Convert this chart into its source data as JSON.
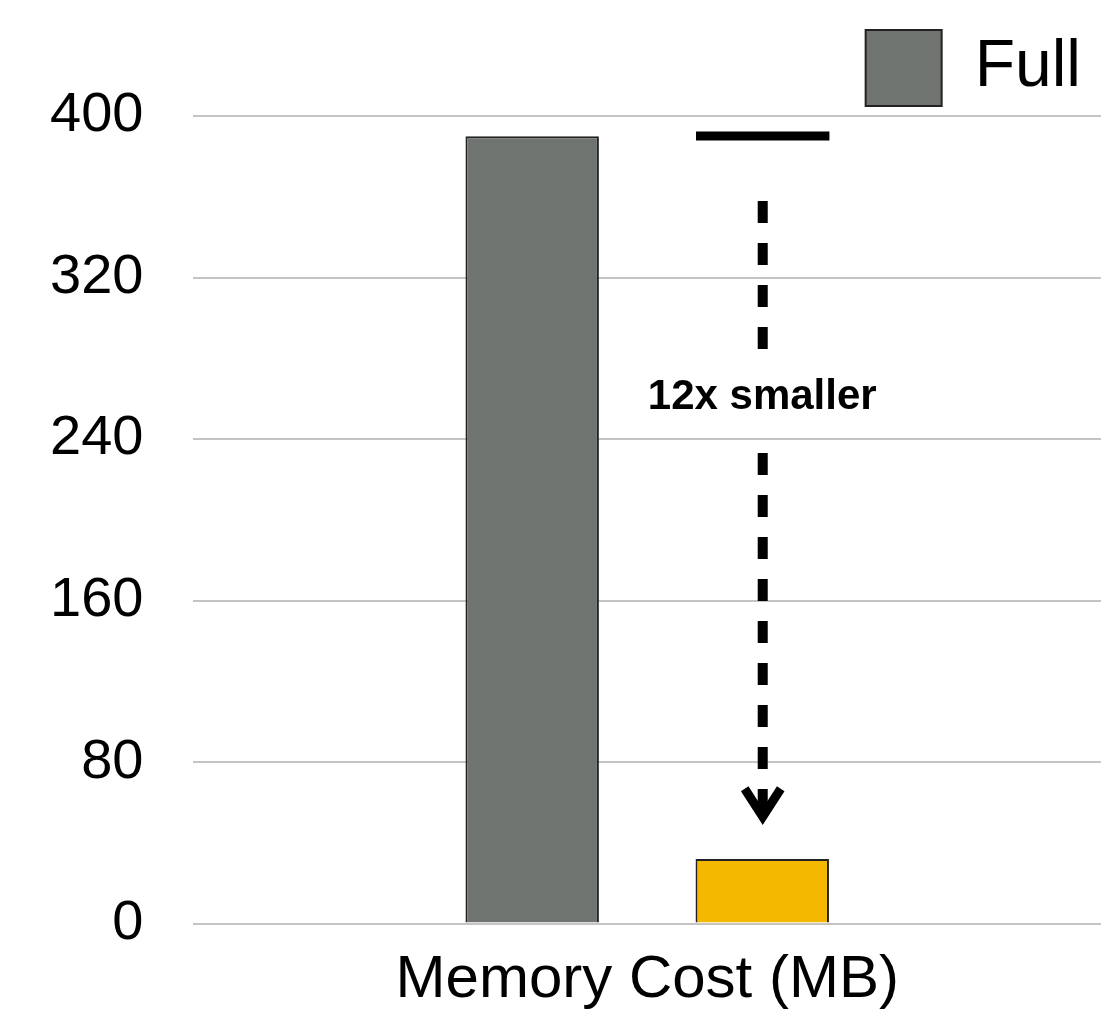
{
  "chart_data": {
    "type": "bar",
    "categories": [
      null
    ],
    "xlabel": "Memory Cost (MB)",
    "series": [
      {
        "name": "Full",
        "color": "#6f7471",
        "values": [
          390
        ]
      },
      {
        "color": "#f5b800",
        "values": [
          32
        ]
      }
    ],
    "ylim": [
      0,
      400
    ],
    "yticks": [
      0,
      80,
      160,
      240,
      320,
      400
    ],
    "grid": "y",
    "legend": "top right",
    "annotations": [
      "12x smaller"
    ]
  }
}
